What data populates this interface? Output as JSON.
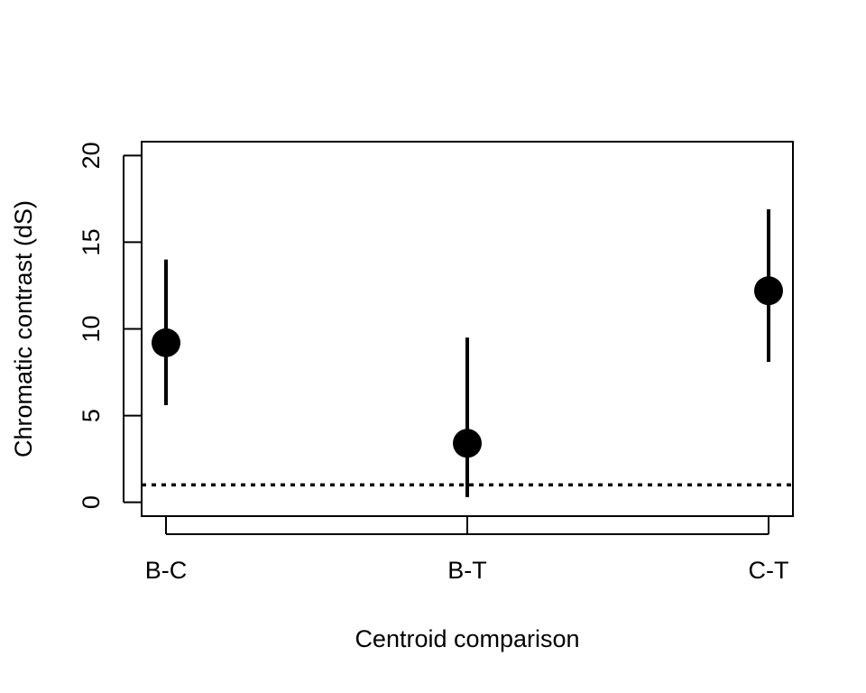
{
  "chart_data": {
    "type": "scatter",
    "title": "",
    "xlabel": "Centroid comparison",
    "ylabel": "Chromatic contrast (dS)",
    "categories": [
      "B-C",
      "B-T",
      "C-T"
    ],
    "series": [
      {
        "points": [
          {
            "category": "B-C",
            "estimate": 9.2,
            "lower": 5.6,
            "upper": 14.0
          },
          {
            "category": "B-T",
            "estimate": 3.4,
            "lower": 0.3,
            "upper": 9.5
          },
          {
            "category": "C-T",
            "estimate": 12.2,
            "lower": 8.1,
            "upper": 16.9
          }
        ]
      }
    ],
    "reference_line": {
      "y": 1,
      "style": "dotted"
    },
    "ylim": [
      -0.8,
      20.8
    ],
    "yticks": [
      0,
      5,
      10,
      15,
      20
    ],
    "ytick_labels": [
      "0",
      "5",
      "10",
      "15",
      "20"
    ],
    "grid": false,
    "legend": "none",
    "colors": {
      "points": "#000000",
      "axes": "#000000",
      "background": "#ffffff"
    }
  }
}
